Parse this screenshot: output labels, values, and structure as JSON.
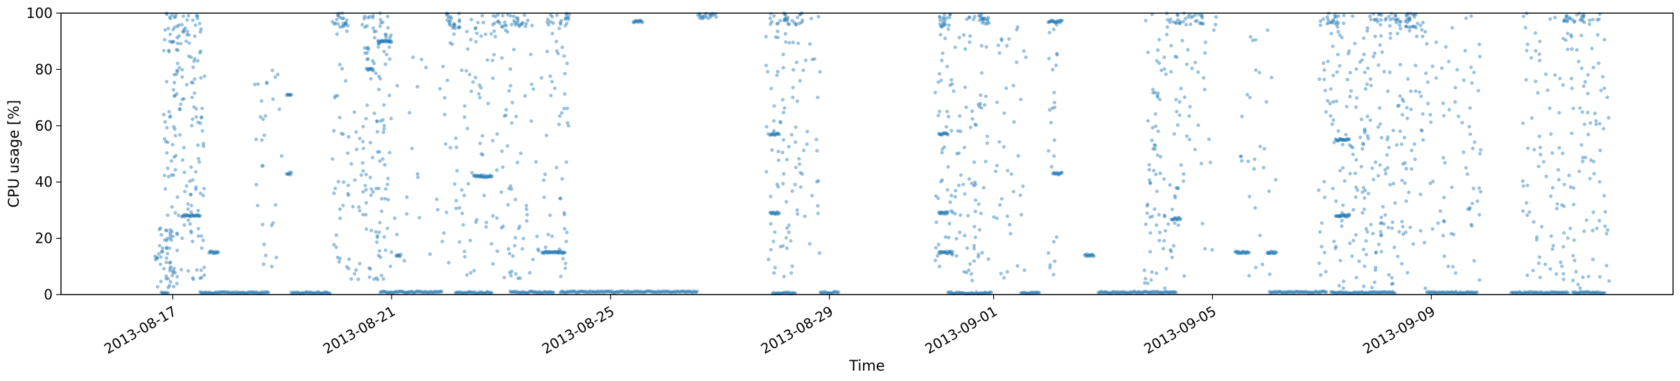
{
  "chart_data": {
    "type": "scatter",
    "title": "",
    "xlabel": "Time",
    "ylabel": "CPU usage [%]",
    "xlim": [
      "2013-08-14T23:00",
      "2013-09-13T10:00"
    ],
    "ylim": [
      0,
      100
    ],
    "yticks": [
      0,
      20,
      40,
      60,
      80,
      100
    ],
    "xticks": [
      "2013-08-17",
      "2013-08-21",
      "2013-08-25",
      "2013-08-29",
      "2013-09-01",
      "2013-09-05",
      "2013-09-09"
    ],
    "grid": false,
    "legend": "none",
    "series": [
      {
        "color": "#1f77b4",
        "alpha": 0.45,
        "baseline_segments": [
          [
            "2013-08-16T19:00",
            "2013-08-16T22:00",
            0.3
          ],
          [
            "2013-08-17T12:00",
            "2013-08-18T18:00",
            0.4
          ],
          [
            "2013-08-19T04:00",
            "2013-08-19T21:00",
            0.3
          ],
          [
            "2013-08-20T19:00",
            "2013-08-21T22:00",
            0.6
          ],
          [
            "2013-08-22T04:00",
            "2013-08-22T20:00",
            0.4
          ],
          [
            "2013-08-23T04:00",
            "2013-08-23T23:00",
            0.6
          ],
          [
            "2013-08-24T02:00",
            "2013-08-26T14:00",
            0.7
          ],
          [
            "2013-08-27T23:00",
            "2013-08-28T09:00",
            0.3
          ],
          [
            "2013-08-28T20:00",
            "2013-08-29T04:00",
            0.5
          ],
          [
            "2013-08-31T04:00",
            "2013-08-31T23:00",
            0.3
          ],
          [
            "2013-09-01T12:00",
            "2013-09-01T20:00",
            0.3
          ],
          [
            "2013-09-02T22:00",
            "2013-09-04T08:00",
            0.5
          ],
          [
            "2013-09-06T01:00",
            "2013-09-07T02:00",
            0.6
          ],
          [
            "2013-09-07T04:00",
            "2013-09-08T08:00",
            0.4
          ],
          [
            "2013-09-08T22:00",
            "2013-09-09T20:00",
            0.4
          ],
          [
            "2013-09-10T11:00",
            "2013-09-11T12:00",
            0.4
          ],
          [
            "2013-09-11T14:00",
            "2013-09-12T04:00",
            0.4
          ]
        ],
        "dense_clusters": [
          [
            "2013-08-16T20:00",
            "2013-08-17T12:00",
            88,
            100
          ],
          [
            "2013-08-19T22:00",
            "2013-08-20T05:00",
            95,
            100
          ],
          [
            "2013-08-20T12:00",
            "2013-08-20T23:00",
            85,
            100
          ],
          [
            "2013-08-22T00:00",
            "2013-08-22T06:00",
            94,
            100
          ],
          [
            "2013-08-22T20:00",
            "2013-08-23T12:00",
            95,
            100
          ],
          [
            "2013-08-23T20:00",
            "2013-08-24T06:00",
            95,
            100
          ],
          [
            "2013-08-26T14:00",
            "2013-08-26T23:00",
            98,
            100
          ],
          [
            "2013-08-27T22:00",
            "2013-08-28T13:00",
            96,
            100
          ],
          [
            "2013-08-31T00:00",
            "2013-08-31T05:00",
            94,
            100
          ],
          [
            "2013-08-31T12:00",
            "2013-08-31T22:00",
            96,
            100
          ],
          [
            "2013-09-04T04:00",
            "2013-09-04T20:00",
            96,
            100
          ],
          [
            "2013-09-07T02:00",
            "2013-09-07T10:00",
            95,
            100
          ],
          [
            "2013-09-07T22:00",
            "2013-09-08T18:00",
            95,
            100
          ],
          [
            "2013-09-11T10:00",
            "2013-09-11T22:00",
            96,
            100
          ]
        ],
        "scattered_ranges": [
          [
            "2013-08-16T16:00",
            "2013-08-17T02:00",
            2,
            24,
            40
          ],
          [
            "2013-08-16T20:00",
            "2013-08-17T14:00",
            5,
            100,
            160
          ],
          [
            "2013-08-18T12:00",
            "2013-08-19T00:00",
            5,
            80,
            30
          ],
          [
            "2013-08-19T22:00",
            "2013-08-20T12:00",
            5,
            100,
            60
          ],
          [
            "2013-08-20T12:00",
            "2013-08-21T00:00",
            5,
            100,
            90
          ],
          [
            "2013-08-21T00:00",
            "2013-08-22T00:00",
            5,
            90,
            25
          ],
          [
            "2013-08-22T00:00",
            "2013-08-22T20:00",
            5,
            100,
            70
          ],
          [
            "2013-08-22T20:00",
            "2013-08-24T06:00",
            5,
            100,
            120
          ],
          [
            "2013-08-27T20:00",
            "2013-08-28T04:00",
            5,
            100,
            40
          ],
          [
            "2013-08-28T04:00",
            "2013-08-28T20:00",
            5,
            100,
            60
          ],
          [
            "2013-08-30T22:00",
            "2013-08-31T22:00",
            5,
            100,
            120
          ],
          [
            "2013-09-01T00:00",
            "2013-09-01T16:00",
            5,
            100,
            40
          ],
          [
            "2013-09-02T00:00",
            "2013-09-02T04:00",
            5,
            100,
            25
          ],
          [
            "2013-09-03T18:00",
            "2013-09-04T12:00",
            2,
            100,
            100
          ],
          [
            "2013-09-04T12:00",
            "2013-09-05T02:00",
            5,
            100,
            25
          ],
          [
            "2013-09-05T12:00",
            "2013-09-06T04:00",
            5,
            100,
            30
          ],
          [
            "2013-09-06T22:00",
            "2013-09-08T22:00",
            2,
            100,
            260
          ],
          [
            "2013-09-08T22:00",
            "2013-09-09T22:00",
            5,
            100,
            70
          ],
          [
            "2013-09-10T16:00",
            "2013-09-12T06:00",
            2,
            100,
            160
          ]
        ],
        "horizontal_runs": [
          [
            "2013-08-17T16:00",
            "2013-08-17T20:00",
            15
          ],
          [
            "2013-08-17T04:00",
            "2013-08-17T12:00",
            28
          ],
          [
            "2013-08-19T02:00",
            "2013-08-19T04:00",
            43
          ],
          [
            "2013-08-19T02:00",
            "2013-08-19T04:00",
            71
          ],
          [
            "2013-08-20T13:00",
            "2013-08-20T16:00",
            80
          ],
          [
            "2013-08-20T18:00",
            "2013-08-21T00:00",
            90
          ],
          [
            "2013-08-21T02:00",
            "2013-08-21T04:00",
            14
          ],
          [
            "2013-08-22T12:00",
            "2013-08-22T20:00",
            42
          ],
          [
            "2013-08-23T18:00",
            "2013-08-24T04:00",
            15
          ],
          [
            "2013-08-25T10:00",
            "2013-08-25T14:00",
            97
          ],
          [
            "2013-08-27T22:00",
            "2013-08-28T02:00",
            57
          ],
          [
            "2013-08-27T22:00",
            "2013-08-28T02:00",
            29
          ],
          [
            "2013-08-31T00:00",
            "2013-08-31T06:00",
            15
          ],
          [
            "2013-08-31T00:00",
            "2013-08-31T04:00",
            29
          ],
          [
            "2013-08-31T00:00",
            "2013-08-31T04:00",
            57
          ],
          [
            "2013-09-02T00:00",
            "2013-09-02T06:00",
            97
          ],
          [
            "2013-09-02T02:00",
            "2013-09-02T06:00",
            43
          ],
          [
            "2013-09-02T16:00",
            "2013-09-02T20:00",
            14
          ],
          [
            "2013-09-04T06:00",
            "2013-09-04T10:00",
            27
          ],
          [
            "2013-09-05T10:00",
            "2013-09-05T16:00",
            15
          ],
          [
            "2013-09-06T00:00",
            "2013-09-06T04:00",
            15
          ],
          [
            "2013-09-07T06:00",
            "2013-09-07T12:00",
            28
          ],
          [
            "2013-09-07T06:00",
            "2013-09-07T12:00",
            55
          ]
        ]
      }
    ]
  }
}
